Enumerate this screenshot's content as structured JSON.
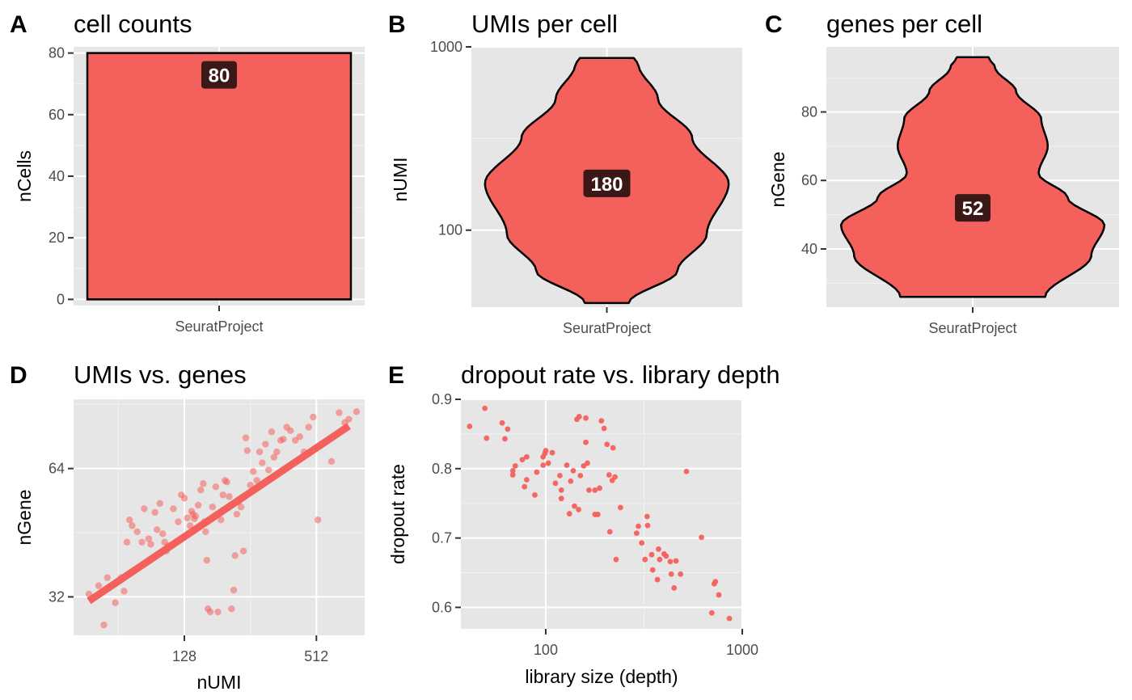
{
  "colors": {
    "fill": "#f4605b",
    "outline": "#000000",
    "label_bg": "#3b1816",
    "panel_bg": "#e6e6e6"
  },
  "chart_data": [
    {
      "id": "A",
      "letter": "A",
      "type": "bar",
      "title": "cell counts",
      "xlabel": "",
      "ylabel": "nCells",
      "categories": [
        "SeuratProject"
      ],
      "values": [
        80
      ],
      "data_label": "80",
      "ylim": [
        -2,
        82
      ],
      "yticks": [
        0,
        20,
        40,
        60,
        80
      ],
      "ytick_labels": [
        "0",
        "20",
        "40",
        "60",
        "80"
      ],
      "grid": true
    },
    {
      "id": "B",
      "letter": "B",
      "type": "violin",
      "title": "UMIs per cell",
      "xlabel": "",
      "ylabel": "nUMI",
      "categories": [
        "SeuratProject"
      ],
      "yscale": "log10",
      "ylim": [
        38,
        1000
      ],
      "yticks": [
        100,
        1000
      ],
      "ytick_labels": [
        "100",
        "1000"
      ],
      "data_label": "180",
      "median": 180,
      "violin_range": [
        40,
        870
      ],
      "density_profile": [
        [
          40,
          0.18
        ],
        [
          60,
          0.58
        ],
        [
          95,
          0.82
        ],
        [
          180,
          1.0
        ],
        [
          320,
          0.7
        ],
        [
          520,
          0.42
        ],
        [
          800,
          0.26
        ],
        [
          870,
          0.22
        ]
      ],
      "grid": true
    },
    {
      "id": "C",
      "letter": "C",
      "type": "violin",
      "title": "genes per cell",
      "xlabel": "",
      "ylabel": "nGene",
      "categories": [
        "SeuratProject"
      ],
      "ylim": [
        23,
        99
      ],
      "yticks": [
        40,
        60,
        80
      ],
      "ytick_labels": [
        "40",
        "60",
        "80"
      ],
      "data_label": "52",
      "median": 52,
      "violin_range": [
        26,
        96
      ],
      "density_profile": [
        [
          26,
          0.55
        ],
        [
          38,
          0.9
        ],
        [
          47,
          1.0
        ],
        [
          55,
          0.72
        ],
        [
          62,
          0.5
        ],
        [
          70,
          0.57
        ],
        [
          78,
          0.52
        ],
        [
          86,
          0.33
        ],
        [
          93,
          0.17
        ],
        [
          96,
          0.12
        ]
      ],
      "grid": true
    },
    {
      "id": "D",
      "letter": "D",
      "type": "scatter",
      "title": "UMIs vs. genes",
      "xlabel": "nUMI",
      "ylabel": "nGene",
      "xscale": "log2",
      "yscale": "log2",
      "xlim": [
        40,
        850
      ],
      "ylim": [
        26,
        93
      ],
      "xticks": [
        128,
        512
      ],
      "xtick_labels": [
        "128",
        "512"
      ],
      "yticks": [
        32,
        64
      ],
      "ytick_labels": [
        "32",
        "64"
      ],
      "trend_line": {
        "x": [
          47,
          720
        ],
        "y": [
          31.3,
          80.5
        ]
      },
      "points": [
        [
          47,
          32.5
        ],
        [
          52,
          34
        ],
        [
          55,
          27.5
        ],
        [
          57,
          35.5
        ],
        [
          62,
          31
        ],
        [
          66,
          35.5
        ],
        [
          68,
          33
        ],
        [
          70,
          43
        ],
        [
          72,
          48.5
        ],
        [
          74,
          47
        ],
        [
          78,
          45.5
        ],
        [
          82,
          43
        ],
        [
          84,
          51.5
        ],
        [
          88,
          43.8
        ],
        [
          90,
          42.5
        ],
        [
          94,
          50.5
        ],
        [
          96,
          46
        ],
        [
          99,
          53
        ],
        [
          102,
          45
        ],
        [
          104,
          43
        ],
        [
          106,
          41
        ],
        [
          108,
          42.2
        ],
        [
          114,
          51.5
        ],
        [
          120,
          48
        ],
        [
          124,
          55.5
        ],
        [
          128,
          54.5
        ],
        [
          132,
          49
        ],
        [
          136,
          47
        ],
        [
          138,
          50.8
        ],
        [
          140,
          50
        ],
        [
          142,
          48.8
        ],
        [
          144,
          49.5
        ],
        [
          148,
          52.5
        ],
        [
          152,
          57
        ],
        [
          156,
          59
        ],
        [
          158,
          48
        ],
        [
          160,
          45.5
        ],
        [
          162,
          39
        ],
        [
          164,
          30
        ],
        [
          168,
          29.5
        ],
        [
          172,
          52
        ],
        [
          178,
          58
        ],
        [
          182,
          29.5
        ],
        [
          188,
          48.5
        ],
        [
          192,
          55.5
        ],
        [
          196,
          60
        ],
        [
          200,
          59.5
        ],
        [
          205,
          55
        ],
        [
          210,
          30
        ],
        [
          215,
          33.2
        ],
        [
          218,
          40
        ],
        [
          222,
          50
        ],
        [
          226,
          53.5
        ],
        [
          232,
          52
        ],
        [
          238,
          41
        ],
        [
          244,
          75.5
        ],
        [
          248,
          70.5
        ],
        [
          256,
          58.5
        ],
        [
          264,
          63
        ],
        [
          274,
          60
        ],
        [
          282,
          70
        ],
        [
          290,
          66
        ],
        [
          300,
          73
        ],
        [
          310,
          63.5
        ],
        [
          320,
          78
        ],
        [
          328,
          68
        ],
        [
          338,
          70
        ],
        [
          352,
          74.5
        ],
        [
          362,
          75
        ],
        [
          375,
          80
        ],
        [
          390,
          78.5
        ],
        [
          410,
          74.5
        ],
        [
          430,
          76
        ],
        [
          450,
          70
        ],
        [
          472,
          80
        ],
        [
          495,
          84.5
        ],
        [
          520,
          48.5
        ],
        [
          600,
          66.5
        ],
        [
          650,
          86.5
        ],
        [
          690,
          82
        ],
        [
          720,
          83.5
        ],
        [
          780,
          87
        ]
      ],
      "grid": true
    },
    {
      "id": "E",
      "letter": "E",
      "type": "scatter",
      "title": "dropout rate vs. library depth",
      "xlabel": "library size (depth)",
      "ylabel": "dropout rate",
      "xscale": "log10",
      "xlim": [
        37,
        1000
      ],
      "ylim": [
        0.569,
        0.9
      ],
      "xticks": [
        100,
        1000
      ],
      "xtick_labels": [
        "100",
        "1000"
      ],
      "yticks": [
        0.6,
        0.7,
        0.8,
        0.9
      ],
      "ytick_labels": [
        "0.6",
        "0.7",
        "0.8",
        "0.9"
      ],
      "points": [
        [
          41,
          0.861
        ],
        [
          49,
          0.887
        ],
        [
          50,
          0.844
        ],
        [
          60,
          0.866
        ],
        [
          62,
          0.843
        ],
        [
          64,
          0.857
        ],
        [
          68,
          0.797
        ],
        [
          68,
          0.791
        ],
        [
          70,
          0.804
        ],
        [
          76,
          0.813
        ],
        [
          78,
          0.774
        ],
        [
          80,
          0.817
        ],
        [
          80,
          0.784
        ],
        [
          88,
          0.762
        ],
        [
          90,
          0.795
        ],
        [
          97,
          0.817
        ],
        [
          97,
          0.805
        ],
        [
          99,
          0.822
        ],
        [
          100,
          0.826
        ],
        [
          103,
          0.808
        ],
        [
          108,
          0.823
        ],
        [
          112,
          0.779
        ],
        [
          118,
          0.79
        ],
        [
          120,
          0.757
        ],
        [
          120,
          0.769
        ],
        [
          128,
          0.805
        ],
        [
          132,
          0.735
        ],
        [
          134,
          0.782
        ],
        [
          138,
          0.797
        ],
        [
          140,
          0.746
        ],
        [
          144,
          0.871
        ],
        [
          147,
          0.741
        ],
        [
          148,
          0.875
        ],
        [
          150,
          0.79
        ],
        [
          156,
          0.804
        ],
        [
          160,
          0.873
        ],
        [
          160,
          0.838
        ],
        [
          163,
          0.808
        ],
        [
          166,
          0.769
        ],
        [
          178,
          0.769
        ],
        [
          178,
          0.734
        ],
        [
          184,
          0.734
        ],
        [
          188,
          0.772
        ],
        [
          192,
          0.869
        ],
        [
          198,
          0.858
        ],
        [
          205,
          0.835
        ],
        [
          210,
          0.791
        ],
        [
          212,
          0.709
        ],
        [
          218,
          0.783
        ],
        [
          220,
          0.83
        ],
        [
          225,
          0.788
        ],
        [
          228,
          0.669
        ],
        [
          240,
          0.744
        ],
        [
          290,
          0.707
        ],
        [
          296,
          0.717
        ],
        [
          308,
          0.693
        ],
        [
          320,
          0.669
        ],
        [
          328,
          0.731
        ],
        [
          330,
          0.718
        ],
        [
          346,
          0.676
        ],
        [
          350,
          0.654
        ],
        [
          370,
          0.64
        ],
        [
          375,
          0.684
        ],
        [
          380,
          0.669
        ],
        [
          400,
          0.677
        ],
        [
          410,
          0.674
        ],
        [
          430,
          0.666
        ],
        [
          435,
          0.648
        ],
        [
          450,
          0.628
        ],
        [
          460,
          0.667
        ],
        [
          485,
          0.648
        ],
        [
          520,
          0.796
        ],
        [
          620,
          0.701
        ],
        [
          700,
          0.592
        ],
        [
          720,
          0.634
        ],
        [
          730,
          0.637
        ],
        [
          760,
          0.618
        ],
        [
          860,
          0.584
        ]
      ],
      "grid": true
    }
  ]
}
